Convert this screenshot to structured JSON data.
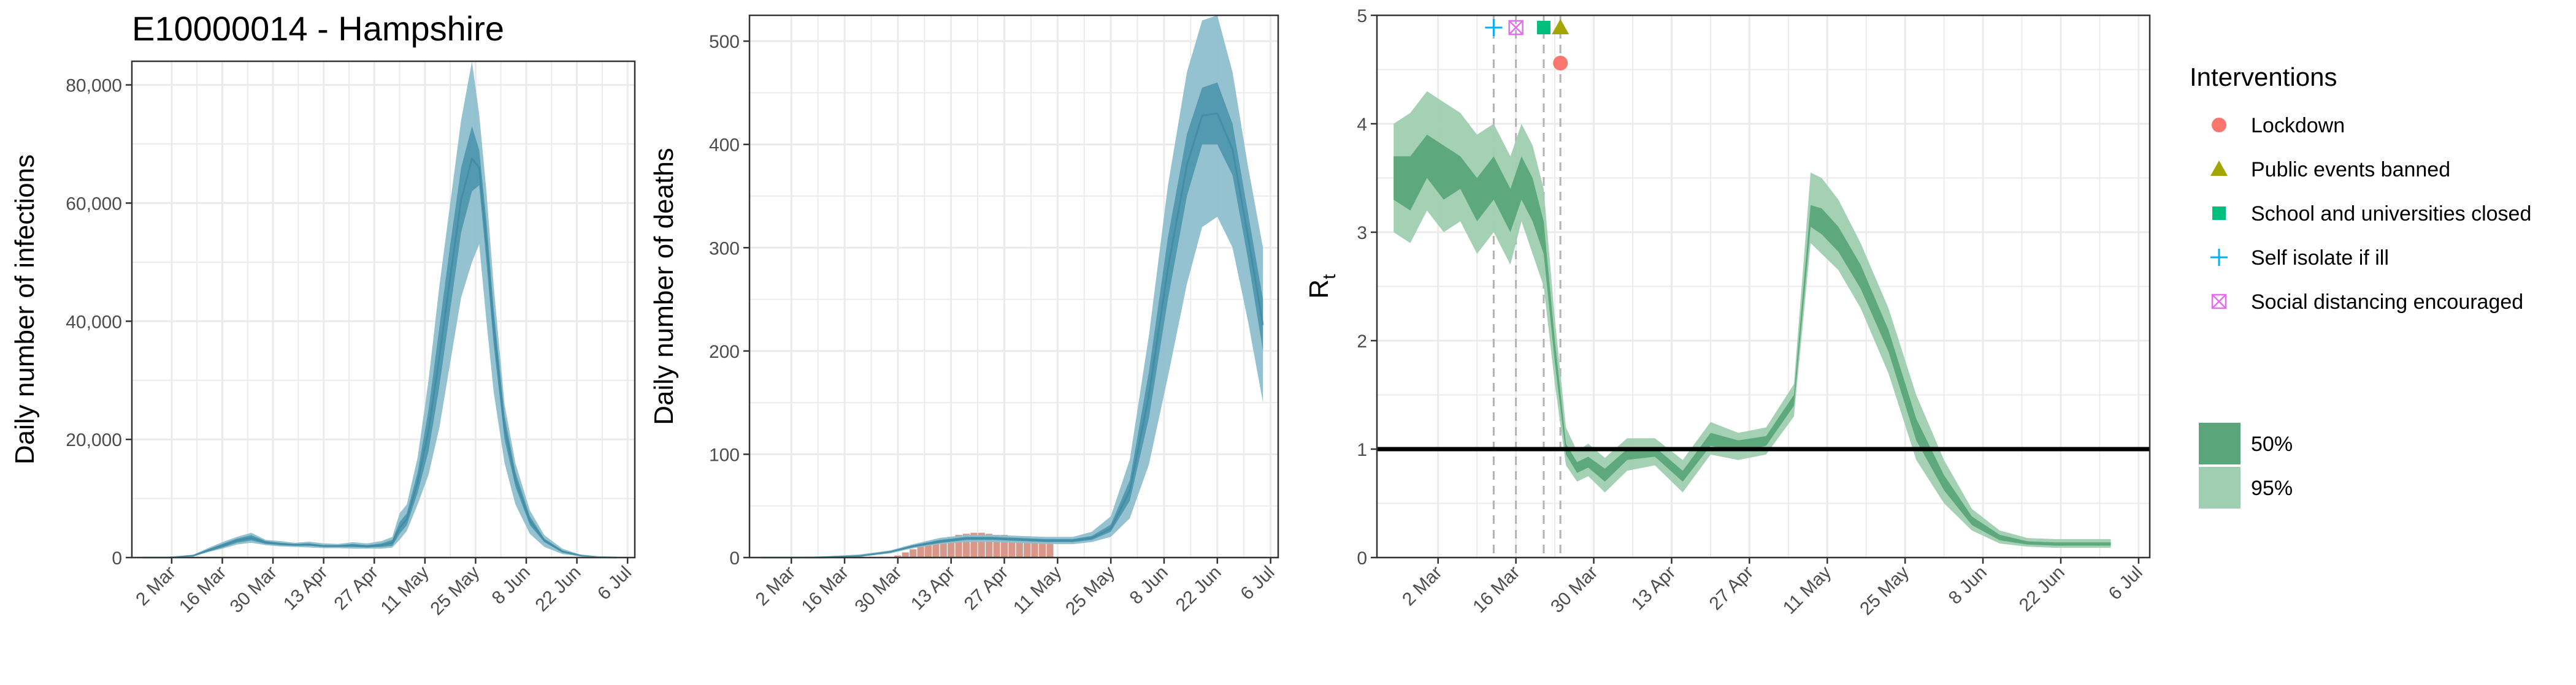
{
  "colors": {
    "blue_95": "#8fbfcd",
    "blue_50": "#4f98af",
    "blue_line": "#3a86a0",
    "green_95": "#9fcfb0",
    "green_50": "#5aa67a",
    "bar": "#d9978a",
    "grid": "#ebebeb",
    "lockdown": "#f8766d",
    "public_events": "#a3a500",
    "schools": "#00bf7d",
    "self_isolate": "#00b0f6",
    "social_distancing": "#e76bf3"
  },
  "chart_data": [
    {
      "type": "area",
      "title": "E10000014 - Hampshire",
      "xlabel": "",
      "ylabel": "Daily number of infections",
      "xticks": [
        "2 Mar",
        "16 Mar",
        "30 Mar",
        "13 Apr",
        "27 Apr",
        "11 May",
        "25 May",
        "8 Jun",
        "22 Jun",
        "6 Jul"
      ],
      "yticks": [
        "0",
        "20,000",
        "40,000",
        "60,000",
        "80,000"
      ],
      "ylim": [
        0,
        84000
      ],
      "x": [
        "2020-02-23",
        "2020-03-01",
        "2020-03-08",
        "2020-03-12",
        "2020-03-16",
        "2020-03-20",
        "2020-03-24",
        "2020-03-28",
        "2020-04-01",
        "2020-04-05",
        "2020-04-09",
        "2020-04-13",
        "2020-04-17",
        "2020-04-21",
        "2020-04-25",
        "2020-04-29",
        "2020-05-02",
        "2020-05-04",
        "2020-05-06",
        "2020-05-09",
        "2020-05-12",
        "2020-05-15",
        "2020-05-18",
        "2020-05-21",
        "2020-05-24",
        "2020-05-26",
        "2020-05-28",
        "2020-05-30",
        "2020-06-02",
        "2020-06-05",
        "2020-06-09",
        "2020-06-13",
        "2020-06-18",
        "2020-06-23",
        "2020-06-28",
        "2020-07-03"
      ],
      "series": [
        {
          "band": "95",
          "lower": [
            0,
            0,
            200,
            900,
            1500,
            2200,
            2500,
            2100,
            1900,
            1800,
            1700,
            1600,
            1600,
            1500,
            1500,
            1500,
            1700,
            3000,
            4500,
            9000,
            14000,
            22000,
            33000,
            44000,
            50000,
            53000,
            40000,
            28000,
            16000,
            9000,
            4000,
            1800,
            600,
            200,
            50,
            0
          ],
          "upper": [
            0,
            0,
            500,
            1600,
            2600,
            3500,
            4200,
            3000,
            2800,
            2500,
            2700,
            2400,
            2300,
            2600,
            2400,
            2800,
            3500,
            7500,
            9000,
            17000,
            30000,
            46000,
            60000,
            74000,
            84000,
            75000,
            62000,
            46000,
            26000,
            16000,
            8000,
            3800,
            1500,
            500,
            100,
            0
          ]
        },
        {
          "band": "50",
          "lower": [
            0,
            0,
            250,
            1000,
            1700,
            2500,
            2900,
            2300,
            2100,
            2000,
            2000,
            1800,
            1800,
            1800,
            1700,
            1800,
            2000,
            4000,
            5500,
            11000,
            18000,
            29000,
            42000,
            55000,
            62000,
            63000,
            50000,
            36000,
            20000,
            12000,
            5500,
            2600,
            900,
            300,
            60,
            0
          ],
          "upper": [
            0,
            0,
            400,
            1400,
            2300,
            3200,
            3800,
            2800,
            2500,
            2300,
            2400,
            2100,
            2100,
            2300,
            2100,
            2400,
            3000,
            6000,
            7500,
            14500,
            25000,
            39000,
            53000,
            66000,
            73000,
            69000,
            57000,
            42000,
            24000,
            14500,
            7000,
            3200,
            1200,
            400,
            80,
            0
          ]
        },
        {
          "band": "median",
          "values": [
            0,
            0,
            320,
            1200,
            2000,
            2900,
            3300,
            2550,
            2300,
            2150,
            2200,
            1950,
            1950,
            2050,
            1900,
            2100,
            2500,
            5000,
            6500,
            12800,
            21500,
            34000,
            47500,
            60500,
            67500,
            66000,
            53500,
            39000,
            22000,
            13200,
            6200,
            2900,
            1000,
            350,
            70,
            0
          ]
        }
      ]
    },
    {
      "type": "area",
      "title": "",
      "xlabel": "",
      "ylabel": "Daily number of deaths",
      "xticks": [
        "2 Mar",
        "16 Mar",
        "30 Mar",
        "13 Apr",
        "27 Apr",
        "11 May",
        "25 May",
        "8 Jun",
        "22 Jun",
        "6 Jul"
      ],
      "yticks": [
        "0",
        "100",
        "200",
        "300",
        "400",
        "500"
      ],
      "ylim": [
        0,
        525
      ],
      "x": [
        "2020-02-23",
        "2020-03-10",
        "2020-03-20",
        "2020-03-28",
        "2020-04-03",
        "2020-04-10",
        "2020-04-17",
        "2020-04-24",
        "2020-05-01",
        "2020-05-08",
        "2020-05-15",
        "2020-05-20",
        "2020-05-25",
        "2020-05-30",
        "2020-06-04",
        "2020-06-09",
        "2020-06-14",
        "2020-06-18",
        "2020-06-22",
        "2020-06-26",
        "2020-06-30",
        "2020-07-04"
      ],
      "series": [
        {
          "band": "95",
          "lower": [
            0,
            0,
            1,
            4,
            9,
            13,
            15,
            15,
            14,
            13,
            13,
            15,
            20,
            38,
            90,
            175,
            265,
            320,
            330,
            300,
            230,
            150
          ],
          "upper": [
            0,
            1,
            3,
            7,
            13,
            19,
            22,
            22,
            21,
            20,
            20,
            25,
            40,
            95,
            215,
            360,
            470,
            520,
            525,
            470,
            380,
            300
          ]
        },
        {
          "band": "50",
          "lower": [
            0,
            0,
            1,
            5,
            10,
            14,
            17,
            17,
            16,
            15,
            15,
            17,
            25,
            55,
            135,
            250,
            350,
            400,
            400,
            370,
            290,
            200
          ],
          "upper": [
            0,
            1,
            2,
            6,
            12,
            17,
            20,
            20,
            19,
            18,
            18,
            21,
            32,
            75,
            180,
            310,
            410,
            455,
            460,
            420,
            335,
            250
          ]
        },
        {
          "band": "median",
          "values": [
            0,
            0,
            1.5,
            5.5,
            11,
            15.5,
            18.5,
            18.5,
            17.5,
            16.5,
            16.5,
            19,
            28,
            65,
            157,
            280,
            380,
            428,
            430,
            395,
            312,
            225
          ]
        }
      ],
      "bars": {
        "x": [
          "2020-03-30",
          "2020-04-01",
          "2020-04-03",
          "2020-04-05",
          "2020-04-07",
          "2020-04-09",
          "2020-04-11",
          "2020-04-13",
          "2020-04-15",
          "2020-04-17",
          "2020-04-19",
          "2020-04-21",
          "2020-04-23",
          "2020-04-25",
          "2020-04-27",
          "2020-04-29",
          "2020-05-01",
          "2020-05-03",
          "2020-05-05",
          "2020-05-07",
          "2020-05-09"
        ],
        "values": [
          2,
          5,
          8,
          11,
          14,
          17,
          19,
          20,
          22,
          23,
          24,
          24,
          23,
          22,
          22,
          20,
          20,
          19,
          18,
          17,
          16
        ]
      }
    },
    {
      "type": "area",
      "title": "",
      "xlabel": "",
      "ylabel": "R",
      "ylabel_subscript": "t",
      "xticks": [
        "2 Mar",
        "16 Mar",
        "30 Mar",
        "13 Apr",
        "27 Apr",
        "11 May",
        "25 May",
        "8 Jun",
        "22 Jun",
        "6 Jul"
      ],
      "yticks": [
        "0",
        "1",
        "2",
        "3",
        "4",
        "5"
      ],
      "ylim": [
        0,
        5
      ],
      "reference_line": 1,
      "x": [
        "2020-02-23",
        "2020-02-26",
        "2020-02-29",
        "2020-03-03",
        "2020-03-06",
        "2020-03-09",
        "2020-03-12",
        "2020-03-15",
        "2020-03-17",
        "2020-03-19",
        "2020-03-21",
        "2020-03-23",
        "2020-03-25",
        "2020-03-27",
        "2020-03-29",
        "2020-04-01",
        "2020-04-05",
        "2020-04-10",
        "2020-04-15",
        "2020-04-20",
        "2020-04-25",
        "2020-04-30",
        "2020-05-05",
        "2020-05-08",
        "2020-05-10",
        "2020-05-13",
        "2020-05-17",
        "2020-05-22",
        "2020-05-27",
        "2020-06-01",
        "2020-06-06",
        "2020-06-11",
        "2020-06-16",
        "2020-06-21",
        "2020-06-26",
        "2020-07-01"
      ],
      "series": [
        {
          "band": "95",
          "lower": [
            3.0,
            2.9,
            3.2,
            3.0,
            3.1,
            2.8,
            3.0,
            2.7,
            3.1,
            2.8,
            2.5,
            1.6,
            0.85,
            0.7,
            0.75,
            0.6,
            0.8,
            0.85,
            0.6,
            0.95,
            0.9,
            0.95,
            1.3,
            2.9,
            2.8,
            2.65,
            2.3,
            1.7,
            0.9,
            0.5,
            0.25,
            0.13,
            0.1,
            0.09,
            0.09,
            0.09
          ],
          "upper": [
            4.0,
            4.1,
            4.3,
            4.2,
            4.1,
            3.9,
            4.0,
            3.7,
            4.0,
            3.8,
            3.4,
            2.2,
            1.2,
            0.98,
            1.05,
            0.92,
            1.1,
            1.1,
            0.9,
            1.25,
            1.15,
            1.2,
            1.6,
            3.55,
            3.5,
            3.3,
            2.9,
            2.3,
            1.5,
            0.9,
            0.45,
            0.25,
            0.18,
            0.17,
            0.17,
            0.17
          ]
        },
        {
          "band": "50",
          "lower": [
            3.3,
            3.2,
            3.5,
            3.3,
            3.4,
            3.1,
            3.3,
            3.0,
            3.3,
            3.1,
            2.8,
            1.8,
            0.95,
            0.78,
            0.83,
            0.7,
            0.9,
            0.93,
            0.7,
            1.03,
            0.98,
            1.03,
            1.4,
            3.05,
            2.98,
            2.82,
            2.48,
            1.9,
            1.08,
            0.62,
            0.3,
            0.16,
            0.12,
            0.11,
            0.11,
            0.11
          ],
          "upper": [
            3.7,
            3.7,
            3.9,
            3.8,
            3.7,
            3.5,
            3.7,
            3.4,
            3.7,
            3.5,
            3.1,
            2.0,
            1.05,
            0.88,
            0.93,
            0.82,
            1.0,
            1.02,
            0.8,
            1.15,
            1.08,
            1.12,
            1.5,
            3.25,
            3.22,
            3.05,
            2.7,
            2.1,
            1.28,
            0.76,
            0.38,
            0.21,
            0.15,
            0.14,
            0.14,
            0.14
          ]
        }
      ],
      "interventions": [
        {
          "name": "Self isolate if ill",
          "date": "2020-03-12",
          "symbol": "plus",
          "color_key": "self_isolate",
          "stack": 0
        },
        {
          "name": "Social distancing encouraged",
          "date": "2020-03-16",
          "symbol": "square-x",
          "color_key": "social_distancing",
          "stack": 0
        },
        {
          "name": "School and universities closed",
          "date": "2020-03-21",
          "symbol": "square",
          "color_key": "schools",
          "stack": 0
        },
        {
          "name": "Public events banned",
          "date": "2020-03-24",
          "symbol": "triangle",
          "color_key": "public_events",
          "stack": 0
        },
        {
          "name": "Lockdown",
          "date": "2020-03-24",
          "symbol": "circle",
          "color_key": "lockdown",
          "stack": 1
        }
      ]
    }
  ],
  "legend": {
    "title": "Interventions",
    "items": [
      {
        "label": "Lockdown",
        "symbol": "circle",
        "color_key": "lockdown"
      },
      {
        "label": "Public events banned",
        "symbol": "triangle",
        "color_key": "public_events"
      },
      {
        "label": "School and universities closed",
        "symbol": "square",
        "color_key": "schools"
      },
      {
        "label": "Self isolate if ill",
        "symbol": "plus",
        "color_key": "self_isolate"
      },
      {
        "label": "Social distancing encouraged",
        "symbol": "square-x",
        "color_key": "social_distancing"
      }
    ],
    "bands": [
      {
        "label": "50%",
        "color_key": "green_50"
      },
      {
        "label": "95%",
        "color_key": "green_95"
      }
    ]
  }
}
